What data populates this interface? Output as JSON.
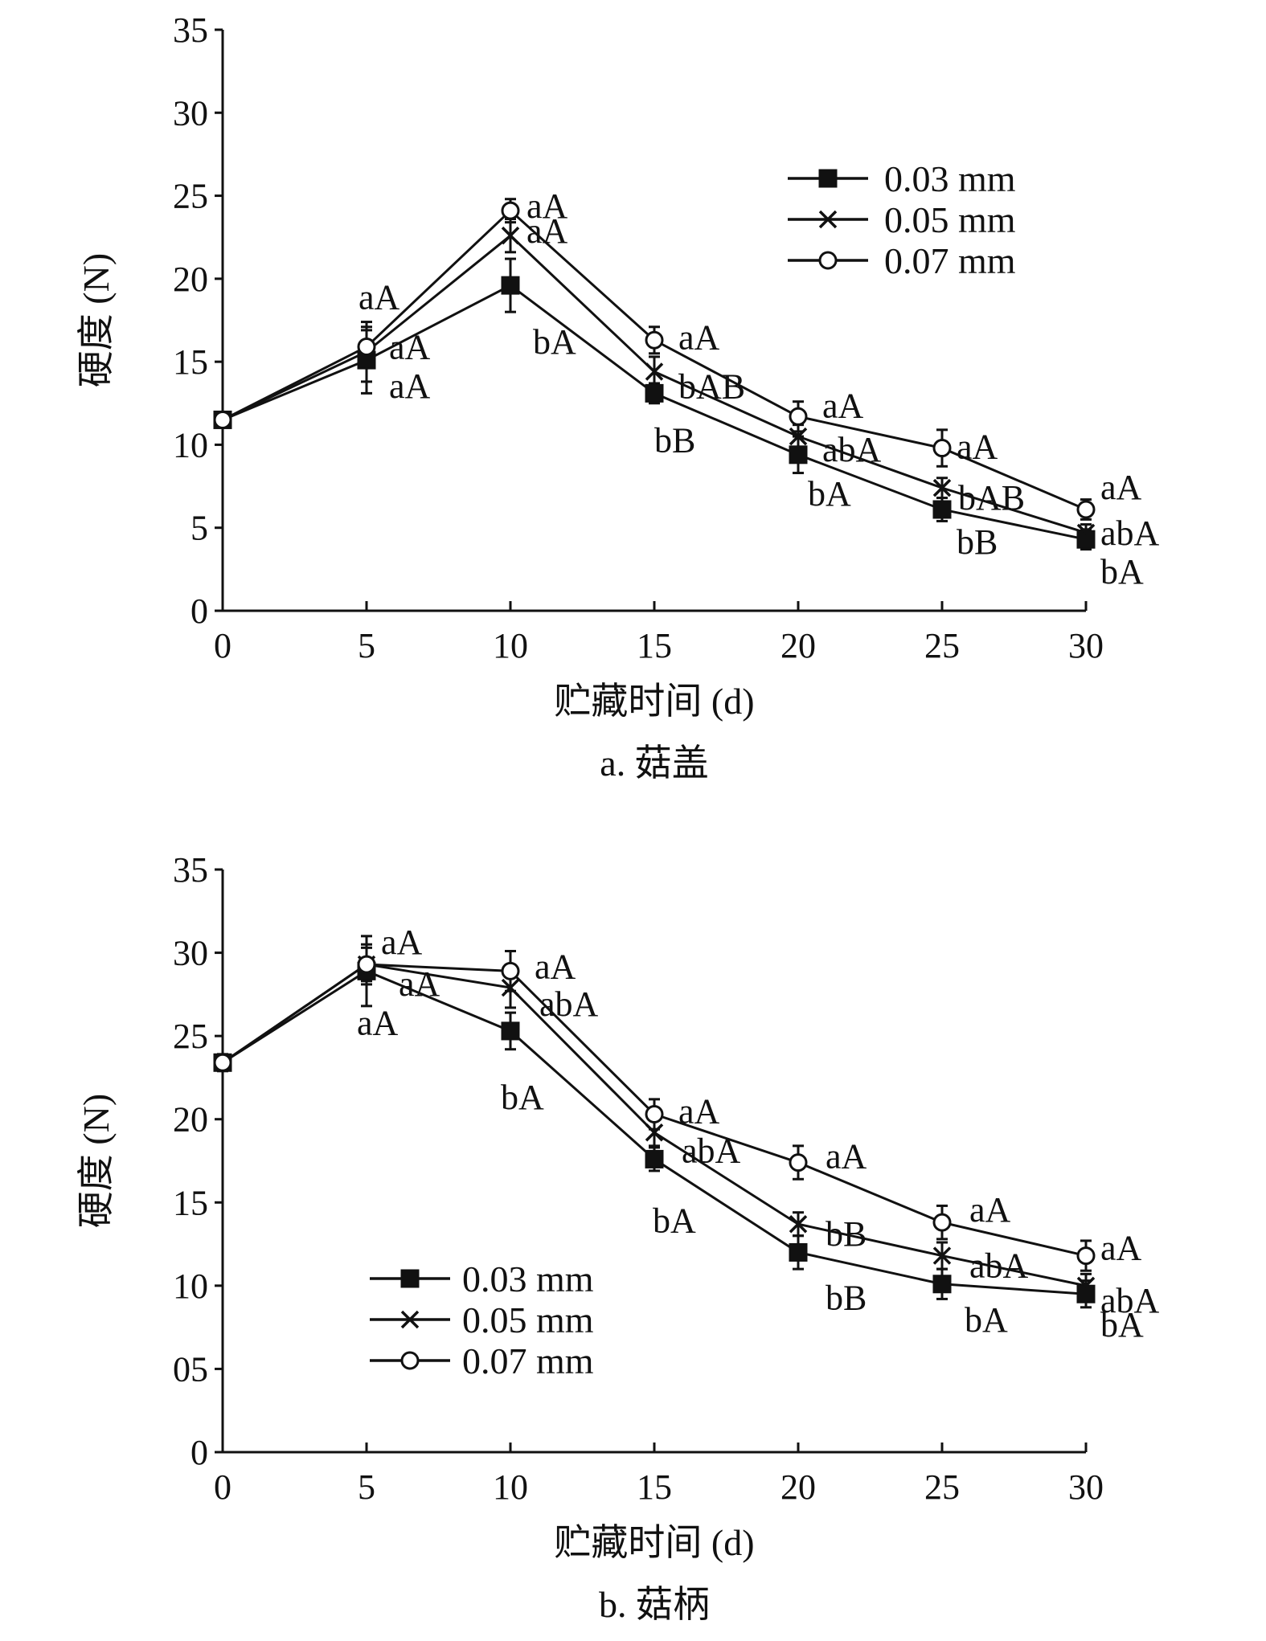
{
  "chart_data": [
    {
      "type": "line",
      "panel": "a",
      "caption": "a. 菇盖",
      "xlabel": "贮藏时间 (d)",
      "ylabel": "硬度 (N)",
      "x": [
        0,
        5,
        10,
        15,
        20,
        25,
        30
      ],
      "x_ticks": [
        "0",
        "5",
        "10",
        "15",
        "20",
        "25",
        "30"
      ],
      "y_ticks": [
        "0",
        "5",
        "10",
        "15",
        "20",
        "25",
        "30",
        "35"
      ],
      "xlim": [
        0,
        30
      ],
      "ylim": [
        0,
        35
      ],
      "legend_position": "top-right",
      "series": [
        {
          "name": "0.03 mm",
          "marker": "filled-square",
          "values": [
            11.5,
            15.1,
            19.6,
            13.1,
            9.4,
            6.1,
            4.3
          ],
          "errors": [
            0.4,
            2.0,
            1.6,
            0.6,
            1.1,
            0.7,
            0.6
          ],
          "labels": [
            "",
            "aA",
            "bA",
            "bB",
            "bA",
            "bB",
            "bA"
          ]
        },
        {
          "name": "0.05 mm",
          "marker": "cross",
          "values": [
            11.5,
            15.6,
            22.6,
            14.4,
            10.5,
            7.4,
            4.7
          ],
          "errors": [
            0.4,
            1.8,
            1.0,
            0.9,
            0.7,
            0.6,
            0.5
          ],
          "labels": [
            "",
            "aA",
            "aA",
            "bAB",
            "abA",
            "bAB",
            "abA"
          ]
        },
        {
          "name": "0.07 mm",
          "marker": "open-circle",
          "values": [
            11.5,
            15.9,
            24.1,
            16.3,
            11.7,
            9.8,
            6.1
          ],
          "errors": [
            0.4,
            1.0,
            0.7,
            0.8,
            0.9,
            1.1,
            0.6
          ],
          "labels": [
            "",
            "aA",
            "aA",
            "aA",
            "aA",
            "aA",
            "aA"
          ]
        }
      ]
    },
    {
      "type": "line",
      "panel": "b",
      "caption": "b. 菇柄",
      "xlabel": "贮藏时间 (d)",
      "ylabel": "硬度 (N)",
      "x": [
        0,
        5,
        10,
        15,
        20,
        25,
        30
      ],
      "x_ticks": [
        "0",
        "5",
        "10",
        "15",
        "20",
        "25",
        "30"
      ],
      "y_ticks": [
        "0",
        "05",
        "10",
        "15",
        "20",
        "25",
        "30",
        "35"
      ],
      "xlim": [
        0,
        30
      ],
      "ylim": [
        0,
        35
      ],
      "legend_position": "bottom-left",
      "series": [
        {
          "name": "0.03 mm",
          "marker": "filled-square",
          "values": [
            23.4,
            28.9,
            25.3,
            17.6,
            12.0,
            10.1,
            9.5
          ],
          "errors": [
            0.5,
            2.1,
            1.1,
            0.7,
            1.0,
            0.9,
            0.8
          ],
          "labels": [
            "",
            "aA",
            "bA",
            "bA",
            "bB",
            "bA",
            "bA"
          ]
        },
        {
          "name": "0.05 mm",
          "marker": "cross",
          "values": [
            23.4,
            29.3,
            27.9,
            19.2,
            13.7,
            11.8,
            10.0
          ],
          "errors": [
            0.5,
            1.2,
            1.2,
            0.8,
            0.7,
            0.8,
            0.7
          ],
          "labels": [
            "",
            "aA",
            "abA",
            "abA",
            "bB",
            "abA",
            "abA"
          ]
        },
        {
          "name": "0.07 mm",
          "marker": "open-circle",
          "values": [
            23.4,
            29.3,
            28.9,
            20.3,
            17.4,
            13.8,
            11.8
          ],
          "errors": [
            0.5,
            1.0,
            1.2,
            0.9,
            1.0,
            1.0,
            0.9
          ],
          "labels": [
            "",
            "aA",
            "aA",
            "aA",
            "aA",
            "aA",
            "aA"
          ]
        }
      ]
    }
  ]
}
